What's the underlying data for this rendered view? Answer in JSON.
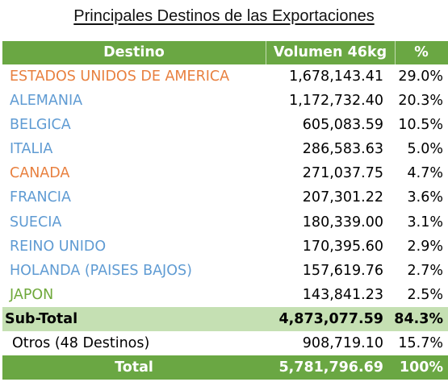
{
  "title": "Principales Destinos de las Exportaciones",
  "columns": {
    "destino": "Destino",
    "volumen": "Volumen 46kg",
    "pct": "%"
  },
  "rows": [
    {
      "destino": "ESTADOS UNIDOS DE AMERICA",
      "volumen": "1,678,143.41",
      "pct": "29.0%",
      "color": "#e8803f"
    },
    {
      "destino": "ALEMANIA",
      "volumen": "1,172,732.40",
      "pct": "20.3%",
      "color": "#5f9bd3"
    },
    {
      "destino": "BELGICA",
      "volumen": "605,083.59",
      "pct": "10.5%",
      "color": "#5f9bd3"
    },
    {
      "destino": "ITALIA",
      "volumen": "286,583.63",
      "pct": "5.0%",
      "color": "#5f9bd3"
    },
    {
      "destino": "CANADA",
      "volumen": "271,037.75",
      "pct": "4.7%",
      "color": "#e8803f"
    },
    {
      "destino": "FRANCIA",
      "volumen": "207,301.22",
      "pct": "3.6%",
      "color": "#5f9bd3"
    },
    {
      "destino": "SUECIA",
      "volumen": "180,339.00",
      "pct": "3.1%",
      "color": "#5f9bd3"
    },
    {
      "destino": "REINO UNIDO",
      "volumen": "170,395.60",
      "pct": "2.9%",
      "color": "#5f9bd3"
    },
    {
      "destino": "HOLANDA (PAISES BAJOS)",
      "volumen": "157,619.76",
      "pct": "2.7%",
      "color": "#5f9bd3"
    },
    {
      "destino": "JAPON",
      "volumen": "143,841.23",
      "pct": "2.5%",
      "color": "#6fa83b"
    }
  ],
  "subtotal": {
    "label": "Sub-Total",
    "volumen": "4,873,077.59",
    "pct": "84.3%"
  },
  "otros": {
    "label": "Otros (48 Destinos)",
    "volumen": "908,719.10",
    "pct": "15.7%"
  },
  "total": {
    "label": "Total",
    "volumen": "5,781,796.69",
    "pct": "100%"
  },
  "colors": {
    "header_bg": "#6aa743",
    "subtotal_bg": "#c5e0b3",
    "orange": "#e8803f",
    "blue": "#5f9bd3",
    "green": "#6fa83b"
  }
}
